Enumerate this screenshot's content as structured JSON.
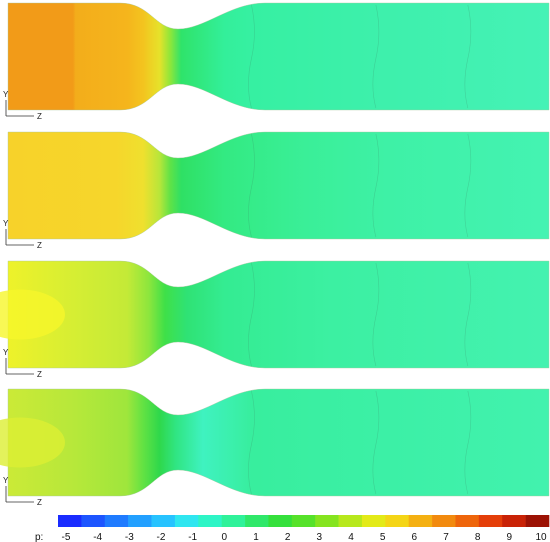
{
  "panels": [
    {
      "id": 1,
      "axis_v": "Y",
      "axis_h": "Z",
      "theme": "orange"
    },
    {
      "id": 2,
      "axis_v": "Y",
      "axis_h": "Z",
      "theme": "yellow"
    },
    {
      "id": 3,
      "axis_v": "Y",
      "axis_h": "Z",
      "theme": "lime"
    },
    {
      "id": 4,
      "axis_v": "Y",
      "axis_h": "Z",
      "theme": "lime2"
    }
  ],
  "colorbar": {
    "label": "p:",
    "ticks": [
      "-5",
      "-4",
      "-3",
      "-2",
      "-1",
      "0",
      "1",
      "2",
      "3",
      "4",
      "5",
      "6",
      "7",
      "8",
      "9",
      "10"
    ],
    "colors": [
      "#1a2cff",
      "#1d55ff",
      "#1f7bff",
      "#22a0ff",
      "#27c3ff",
      "#2fe6f0",
      "#2ef5c6",
      "#2ff29a",
      "#2fe86a",
      "#35e03c",
      "#56e22a",
      "#85e41f",
      "#b7e81c",
      "#e3ea18",
      "#f4d516",
      "#f4b012",
      "#f28a0e",
      "#ee650b",
      "#e43e09",
      "#c92206",
      "#9c1204"
    ]
  }
}
